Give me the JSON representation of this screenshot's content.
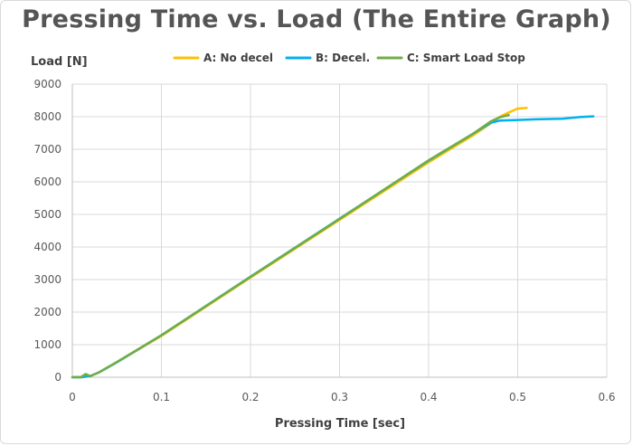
{
  "chart_data": {
    "type": "line",
    "title": "Pressing Time vs. Load (The Entire Graph)",
    "xlabel": "Pressing Time [sec]",
    "ylabel": "Load [N]",
    "xlim": [
      0,
      0.6
    ],
    "ylim": [
      0,
      9000
    ],
    "xticks": [
      "0",
      "0.1",
      "0.2",
      "0.3",
      "0.4",
      "0.5",
      "0.6"
    ],
    "yticks": [
      "0",
      "1000",
      "2000",
      "3000",
      "4000",
      "5000",
      "6000",
      "7000",
      "8000",
      "9000"
    ],
    "grid": true,
    "legend_position": "top",
    "series": [
      {
        "name": "A: No decel",
        "color": "#FFC000",
        "points": [
          [
            0.0,
            0
          ],
          [
            0.01,
            0
          ],
          [
            0.02,
            40
          ],
          [
            0.03,
            150
          ],
          [
            0.05,
            460
          ],
          [
            0.1,
            1270
          ],
          [
            0.2,
            3060
          ],
          [
            0.3,
            4830
          ],
          [
            0.4,
            6600
          ],
          [
            0.45,
            7430
          ],
          [
            0.47,
            7800
          ],
          [
            0.48,
            8000
          ],
          [
            0.49,
            8130
          ],
          [
            0.5,
            8250
          ],
          [
            0.51,
            8270
          ]
        ]
      },
      {
        "name": "B: Decel.",
        "color": "#00B0F0",
        "points": [
          [
            0.0,
            0
          ],
          [
            0.01,
            0
          ],
          [
            0.02,
            40
          ],
          [
            0.03,
            150
          ],
          [
            0.05,
            460
          ],
          [
            0.1,
            1290
          ],
          [
            0.2,
            3090
          ],
          [
            0.3,
            4870
          ],
          [
            0.4,
            6650
          ],
          [
            0.45,
            7480
          ],
          [
            0.47,
            7820
          ],
          [
            0.48,
            7880
          ],
          [
            0.5,
            7900
          ],
          [
            0.52,
            7920
          ],
          [
            0.55,
            7940
          ],
          [
            0.57,
            7990
          ],
          [
            0.585,
            8010
          ]
        ]
      },
      {
        "name": "C: Smart Load Stop",
        "color": "#70AD47",
        "points": [
          [
            0.0,
            0
          ],
          [
            0.01,
            10
          ],
          [
            0.015,
            100
          ],
          [
            0.02,
            30
          ],
          [
            0.03,
            150
          ],
          [
            0.05,
            470
          ],
          [
            0.1,
            1290
          ],
          [
            0.2,
            3080
          ],
          [
            0.3,
            4860
          ],
          [
            0.4,
            6660
          ],
          [
            0.45,
            7480
          ],
          [
            0.47,
            7860
          ],
          [
            0.48,
            7980
          ],
          [
            0.49,
            8050
          ]
        ]
      }
    ]
  }
}
